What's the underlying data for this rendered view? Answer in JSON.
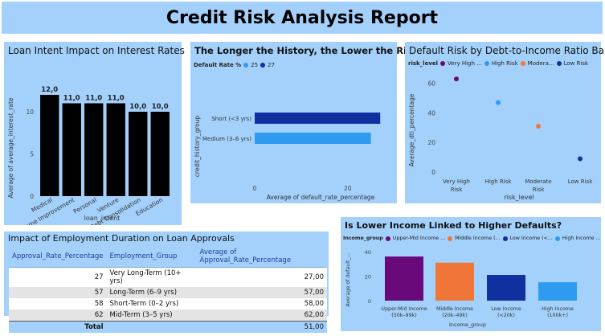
{
  "report_title": "Credit Risk Analysis Report",
  "loan_intent_chart": {
    "panel_title": "Loan Intent Impact on Interest Rates",
    "chart_data": {
      "type": "bar",
      "categories": [
        "Medical",
        "Home Improvement",
        "Personal",
        "Venture",
        "Debt Consolidation",
        "Education"
      ],
      "values": [
        12.0,
        11.0,
        11.0,
        11.0,
        10.0,
        10.0
      ],
      "value_labels": [
        "12,0",
        "11,0",
        "11,0",
        "11,0",
        "10,0",
        "10,0"
      ],
      "xlabel": "loan_intent",
      "ylabel": "Average of average_interest_rate",
      "ylim": [
        0,
        12
      ],
      "yticks": [
        "0",
        "5",
        "10"
      ],
      "bar_color": "#000000"
    }
  },
  "history_chart": {
    "panel_title": "The Longer the History, the Lower the Risk",
    "legend_title": "Default Rate %",
    "legend": [
      {
        "label": "25",
        "color": "#2f9bf0"
      },
      {
        "label": "27",
        "color": "#1030a0"
      }
    ],
    "chart_data": {
      "type": "bar",
      "orientation": "horizontal",
      "categories": [
        "Short (<3 yrs)",
        "Medium (3–6 yrs)"
      ],
      "values": [
        27,
        25
      ],
      "colors": [
        "#1030a0",
        "#2f9bf0"
      ],
      "xlabel": "Average of default_rate_percentage",
      "ylabel": "credit_history_group",
      "xlim": [
        0,
        28
      ],
      "xticks": [
        "0",
        "20"
      ]
    }
  },
  "dti_chart": {
    "panel_title": "Default Risk by Debt-to-Income Ratio Band",
    "legend_title": "risk_level",
    "legend": [
      {
        "label": "Very High ...",
        "color": "#6a0a6a"
      },
      {
        "label": "High Risk",
        "color": "#2f9bf0"
      },
      {
        "label": "Modera...",
        "color": "#f07a30"
      },
      {
        "label": "Low Risk",
        "color": "#1030a0"
      }
    ],
    "chart_data": {
      "type": "scatter",
      "categories": [
        "Very High Risk",
        "High Risk",
        "Moderate Risk",
        "Low Risk"
      ],
      "category_labels": [
        [
          "Very High",
          "Risk"
        ],
        [
          "High Risk"
        ],
        [
          "Moderate",
          "Risk"
        ],
        [
          "Low Risk"
        ]
      ],
      "values": [
        63,
        47,
        31,
        9
      ],
      "colors": [
        "#6a0a6a",
        "#2f9bf0",
        "#f07a30",
        "#1030a0"
      ],
      "xlabel": "risk_level",
      "ylabel": "Average_dti_percentage",
      "ylim": [
        0,
        68
      ],
      "yticks": [
        "0",
        "20",
        "40",
        "60"
      ]
    }
  },
  "employment_table": {
    "panel_title": "Impact of Employment Duration on Loan Approvals",
    "columns": [
      "Approval_Rate_Percentage",
      "Employment_Group",
      "Average of Approval_Rate_Percentage"
    ],
    "rows": [
      [
        "27",
        "Very Long-Term (10+ yrs)",
        "27,00"
      ],
      [
        "57",
        "Long-Term (6–9 yrs)",
        "57,00"
      ],
      [
        "58",
        "Short-Term (0–2 yrs)",
        "58,00"
      ],
      [
        "62",
        "Mid-Term (3–5 yrs)",
        "62,00"
      ]
    ],
    "total_label": "Total",
    "total_value": "51,00"
  },
  "income_chart": {
    "panel_title": "Is Lower Income Linked to Higher Defaults?",
    "legend_title": "Income_group",
    "legend": [
      {
        "label": "Upper-Mid Income ...",
        "color": "#6a0a7a"
      },
      {
        "label": "Middle Income (...",
        "color": "#ef7638"
      },
      {
        "label": "Low Income (<...",
        "color": "#1030a0"
      },
      {
        "label": "High Income ...",
        "color": "#2f9bf0"
      }
    ],
    "chart_data": {
      "type": "bar",
      "categories": [
        "Upper-Mid Income (50k–99k)",
        "Middle Income (20k–49k)",
        "Low Income (<20k)",
        "High Income (100k+)"
      ],
      "category_labels": [
        [
          "Upper-Mid Income",
          "(50k–99k)"
        ],
        [
          "Middle Income",
          "(20k–49k)"
        ],
        [
          "Low Income",
          "(<20k)"
        ],
        [
          "High Income",
          "(100k+)"
        ]
      ],
      "values": [
        36,
        31,
        21,
        15
      ],
      "colors": [
        "#6a0a7a",
        "#ef7638",
        "#1030a0",
        "#2f9bf0"
      ],
      "xlabel": "Income_group",
      "ylabel": "Average of default_...",
      "ylim": [
        0,
        42
      ],
      "yticks": [
        "0",
        "20",
        "40"
      ]
    }
  }
}
